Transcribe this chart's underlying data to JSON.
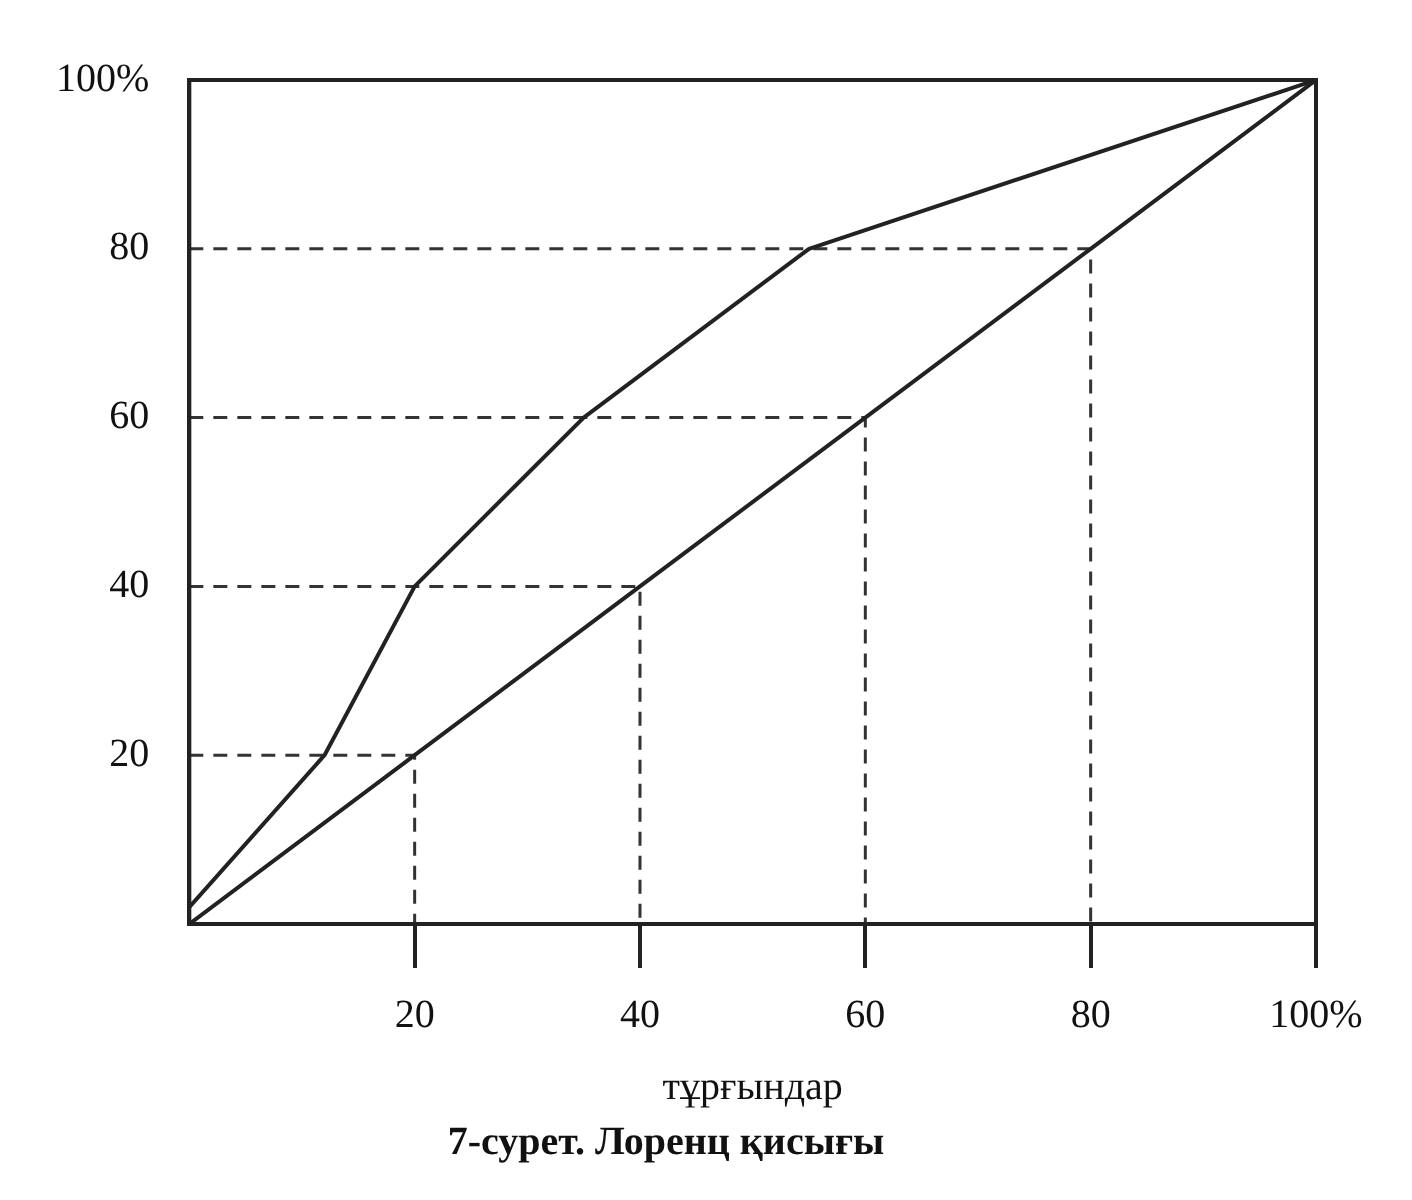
{
  "chart_data": {
    "type": "line",
    "title": "7-сурет. Лоренц қисығы",
    "xlabel": "тұрғындар",
    "xlim": [
      0,
      100
    ],
    "ylim": [
      0,
      100
    ],
    "xticks": [
      20,
      40,
      60,
      80,
      {
        "value": 100,
        "label": "100%"
      }
    ],
    "yticks": [
      20,
      40,
      60,
      80,
      {
        "value": 100,
        "label": "100%"
      }
    ],
    "grid": false,
    "legend": false,
    "marker": "none",
    "series": [
      {
        "color": "#222222",
        "x": [
          0,
          12,
          20,
          35,
          55,
          100
        ],
        "values": [
          2,
          20,
          40,
          60,
          80,
          100
        ]
      },
      {
        "color": "#222222",
        "x": [
          0,
          20,
          40,
          60,
          80,
          100
        ],
        "values": [
          0,
          20,
          40,
          60,
          80,
          100
        ]
      },
      {
        "color": "#333333",
        "line_style": "dashed",
        "x": [
          0,
          20,
          20
        ],
        "values": [
          20,
          20,
          0
        ]
      },
      {
        "color": "#333333",
        "line_style": "dashed",
        "x": [
          0,
          40,
          40
        ],
        "values": [
          40,
          40,
          0
        ]
      },
      {
        "color": "#333333",
        "line_style": "dashed",
        "x": [
          0,
          60,
          60
        ],
        "values": [
          60,
          60,
          0
        ]
      },
      {
        "color": "#333333",
        "line_style": "dashed",
        "x": [
          0,
          80,
          80
        ],
        "values": [
          80,
          80,
          0
        ]
      }
    ]
  }
}
